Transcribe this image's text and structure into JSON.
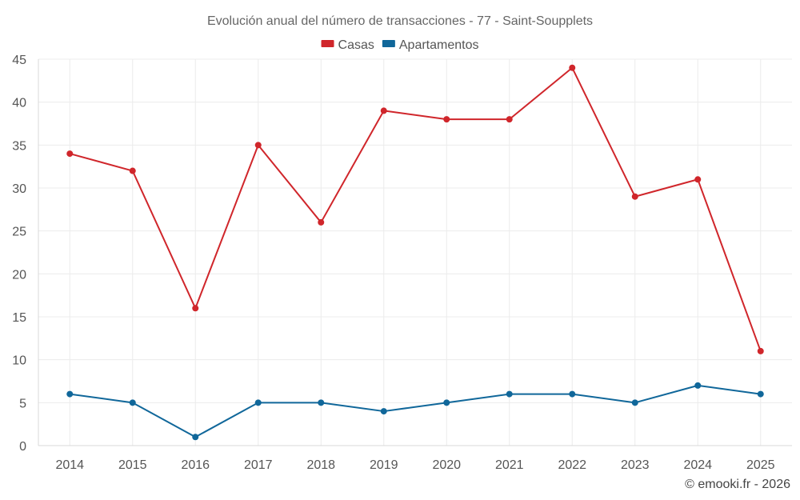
{
  "chart_data": {
    "type": "line",
    "title": "Evolución anual del número de transacciones - 77 - Saint-Soupplets",
    "categories": [
      "2014",
      "2015",
      "2016",
      "2017",
      "2018",
      "2019",
      "2020",
      "2021",
      "2022",
      "2023",
      "2024",
      "2025"
    ],
    "series": [
      {
        "name": "Casas",
        "color": "#d0262b",
        "values": [
          34,
          32,
          16,
          35,
          26,
          39,
          38,
          38,
          44,
          29,
          31,
          11
        ]
      },
      {
        "name": "Apartamentos",
        "color": "#10679a",
        "values": [
          6,
          5,
          1,
          5,
          5,
          4,
          5,
          6,
          6,
          5,
          7,
          6
        ]
      }
    ],
    "ylim": [
      0,
      45
    ],
    "yticks": [
      0,
      5,
      10,
      15,
      20,
      25,
      30,
      35,
      40,
      45
    ],
    "grid": true,
    "legend_position": "top-center"
  },
  "credit": "© emooki.fr - 2026"
}
